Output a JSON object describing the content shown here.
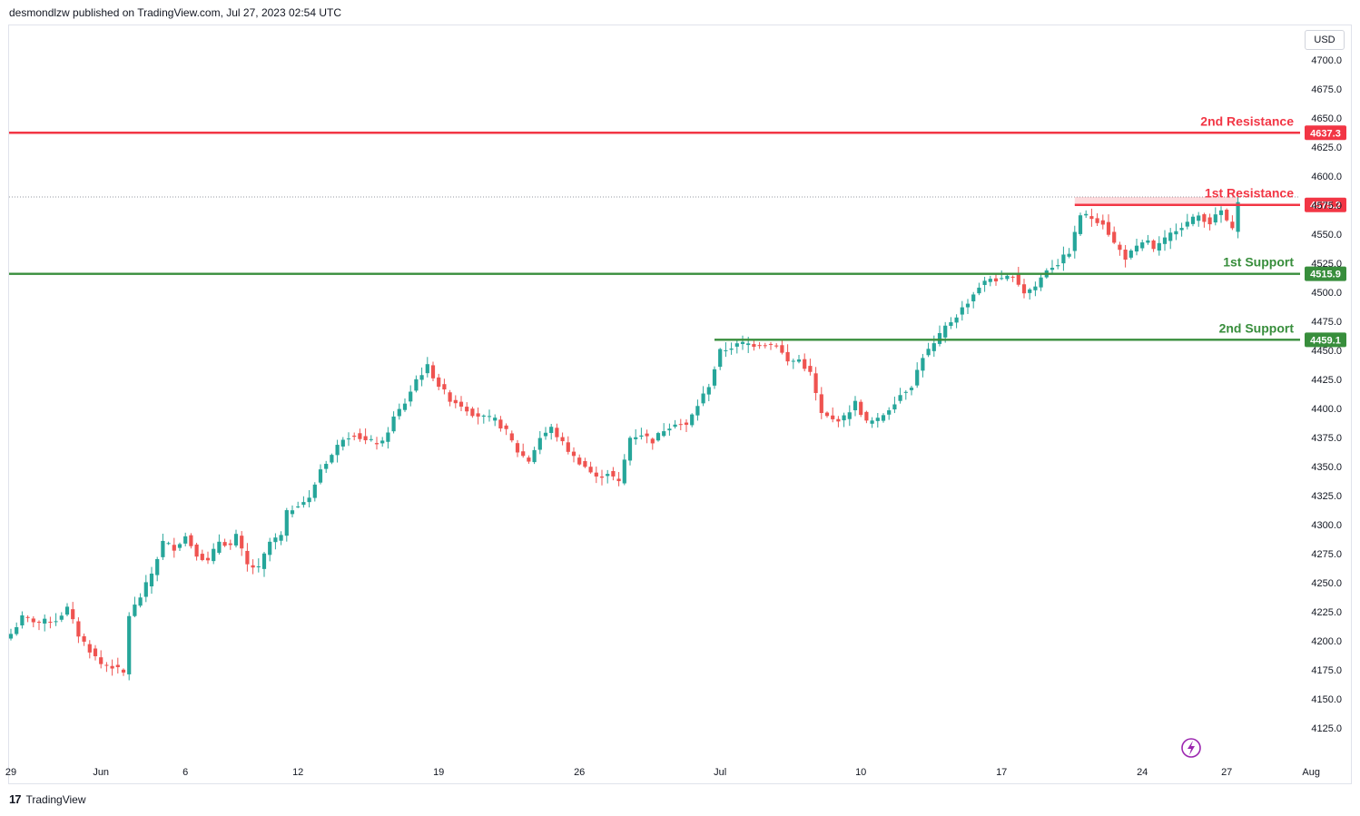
{
  "header": {
    "publisher_text": "desmondlzw published on TradingView.com, Jul 27, 2023 02:54 UTC"
  },
  "currency_button": "USD",
  "footer": {
    "brand": "TradingView",
    "logo_glyph": "17"
  },
  "colors": {
    "up": "#26a69a",
    "down": "#ef5350",
    "resistance": "#f23645",
    "support": "#388e3c",
    "grid": "#f0f3fa",
    "axis_text": "#131722",
    "dotted": "#9598a1",
    "lightning": "#9c27b0"
  },
  "chart_data": {
    "type": "candlestick",
    "title": "",
    "xlabel": "",
    "ylabel": "",
    "ylim": [
      4100,
      4713
    ],
    "y_ticks": [
      4125.0,
      4150.0,
      4175.0,
      4200.0,
      4225.0,
      4250.0,
      4275.0,
      4300.0,
      4325.0,
      4350.0,
      4375.0,
      4400.0,
      4425.0,
      4450.0,
      4475.0,
      4500.0,
      4525.0,
      4550.0,
      4575.0,
      4600.0,
      4625.0,
      4650.0,
      4675.0,
      4700.0
    ],
    "x_tick_labels": [
      {
        "label": "29",
        "bar": 0
      },
      {
        "label": "Jun",
        "bar": 16
      },
      {
        "label": "6",
        "bar": 31
      },
      {
        "label": "12",
        "bar": 51
      },
      {
        "label": "19",
        "bar": 76
      },
      {
        "label": "26",
        "bar": 101
      },
      {
        "label": "Jul",
        "bar": 126
      },
      {
        "label": "10",
        "bar": 151
      },
      {
        "label": "17",
        "bar": 176
      },
      {
        "label": "24",
        "bar": 201
      },
      {
        "label": "27",
        "bar": 216
      },
      {
        "label": "Aug",
        "bar": 231
      }
    ],
    "levels": [
      {
        "name": "2nd Resistance",
        "value": 4637.3,
        "value_label": "4637.3",
        "kind": "resistance",
        "start_bar": 0
      },
      {
        "name": "1st Resistance",
        "value": 4575.2,
        "value_label": "4575.2",
        "kind": "resistance",
        "start_bar": 189
      },
      {
        "name": "1st Support",
        "value": 4515.9,
        "value_label": "4515.9",
        "kind": "support",
        "start_bar": 0
      },
      {
        "name": "2nd Support",
        "value": 4459.1,
        "value_label": "4459.1",
        "kind": "support",
        "start_bar": 125
      }
    ],
    "resistance_zone": {
      "top": 4582,
      "bottom": 4575.2,
      "start_bar": 189,
      "end_bar": 218
    },
    "last_price_dotted": 4582,
    "anchors": [
      [
        0,
        4206
      ],
      [
        2,
        4220
      ],
      [
        5,
        4216
      ],
      [
        8,
        4218
      ],
      [
        10,
        4228
      ],
      [
        12,
        4205
      ],
      [
        14,
        4192
      ],
      [
        16,
        4180
      ],
      [
        18,
        4178
      ],
      [
        20,
        4172
      ],
      [
        21,
        4222
      ],
      [
        23,
        4238
      ],
      [
        25,
        4258
      ],
      [
        27,
        4285
      ],
      [
        29,
        4280
      ],
      [
        31,
        4290
      ],
      [
        33,
        4275
      ],
      [
        35,
        4268
      ],
      [
        37,
        4286
      ],
      [
        39,
        4282
      ],
      [
        40,
        4290
      ],
      [
        42,
        4265
      ],
      [
        44,
        4262
      ],
      [
        46,
        4285
      ],
      [
        48,
        4290
      ],
      [
        49,
        4310
      ],
      [
        51,
        4318
      ],
      [
        53,
        4322
      ],
      [
        55,
        4348
      ],
      [
        57,
        4360
      ],
      [
        59,
        4375
      ],
      [
        61,
        4378
      ],
      [
        63,
        4372
      ],
      [
        66,
        4370
      ],
      [
        68,
        4392
      ],
      [
        70,
        4405
      ],
      [
        72,
        4425
      ],
      [
        74,
        4436
      ],
      [
        76,
        4420
      ],
      [
        78,
        4408
      ],
      [
        80,
        4403
      ],
      [
        82,
        4396
      ],
      [
        84,
        4392
      ],
      [
        86,
        4390
      ],
      [
        88,
        4380
      ],
      [
        90,
        4363
      ],
      [
        92,
        4355
      ],
      [
        94,
        4375
      ],
      [
        96,
        4383
      ],
      [
        98,
        4370
      ],
      [
        100,
        4358
      ],
      [
        102,
        4350
      ],
      [
        104,
        4340
      ],
      [
        106,
        4345
      ],
      [
        108,
        4336
      ],
      [
        110,
        4375
      ],
      [
        112,
        4378
      ],
      [
        114,
        4372
      ],
      [
        116,
        4382
      ],
      [
        118,
        4388
      ],
      [
        120,
        4385
      ],
      [
        122,
        4403
      ],
      [
        124,
        4420
      ],
      [
        126,
        4449
      ],
      [
        128,
        4453
      ],
      [
        130,
        4456
      ],
      [
        132,
        4455
      ],
      [
        134,
        4456
      ],
      [
        136,
        4455
      ],
      [
        138,
        4440
      ],
      [
        140,
        4442
      ],
      [
        142,
        4430
      ],
      [
        144,
        4395
      ],
      [
        146,
        4390
      ],
      [
        148,
        4392
      ],
      [
        150,
        4405
      ],
      [
        152,
        4388
      ],
      [
        154,
        4390
      ],
      [
        156,
        4400
      ],
      [
        158,
        4412
      ],
      [
        160,
        4420
      ],
      [
        162,
        4445
      ],
      [
        164,
        4455
      ],
      [
        166,
        4470
      ],
      [
        168,
        4480
      ],
      [
        170,
        4492
      ],
      [
        172,
        4505
      ],
      [
        174,
        4512
      ],
      [
        176,
        4510
      ],
      [
        178,
        4515
      ],
      [
        180,
        4500
      ],
      [
        182,
        4505
      ],
      [
        184,
        4520
      ],
      [
        186,
        4525
      ],
      [
        188,
        4535
      ],
      [
        189,
        4550
      ],
      [
        190,
        4567
      ],
      [
        192,
        4564
      ],
      [
        194,
        4560
      ],
      [
        196,
        4542
      ],
      [
        198,
        4530
      ],
      [
        200,
        4538
      ],
      [
        202,
        4545
      ],
      [
        203,
        4536
      ],
      [
        205,
        4545
      ],
      [
        207,
        4555
      ],
      [
        209,
        4560
      ],
      [
        211,
        4566
      ],
      [
        213,
        4560
      ],
      [
        215,
        4570
      ],
      [
        217,
        4553
      ],
      [
        218,
        4580
      ]
    ]
  }
}
